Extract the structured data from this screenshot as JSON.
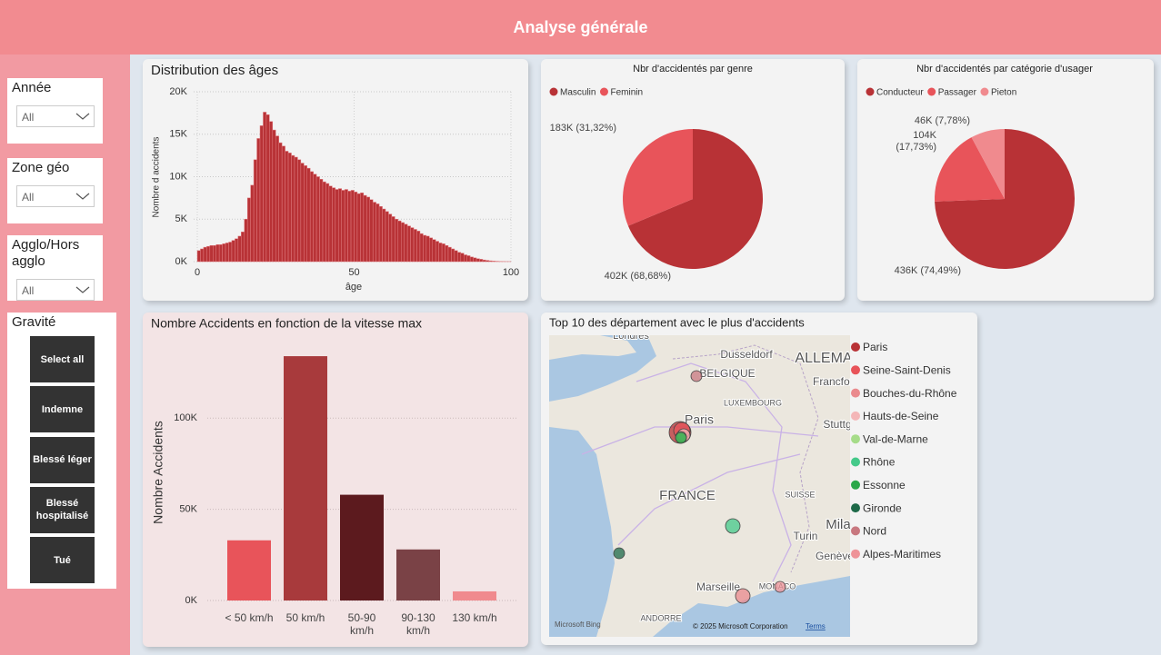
{
  "header": {
    "title": "Analyse générale"
  },
  "slicers": [
    {
      "title": "Année",
      "value": "All"
    },
    {
      "title": "Zone géo",
      "value": "All"
    },
    {
      "title": "Agglo/Hors agglo",
      "value": "All"
    }
  ],
  "gravite": {
    "title": "Gravité",
    "options": [
      "Select all",
      "Indemne",
      "Blessé léger",
      "Blessé hospitalisé",
      "Tué"
    ]
  },
  "chart_data": [
    {
      "type": "histogram",
      "title": "Distribution des âges",
      "xlabel": "âge",
      "ylabel": "Nombre d accidents",
      "color": "#b83236",
      "grid": true,
      "bins": [
        0,
        1,
        2,
        3,
        4,
        5,
        6,
        7,
        8,
        9,
        10,
        11,
        12,
        13,
        14,
        15,
        16,
        17,
        18,
        19,
        20,
        21,
        22,
        23,
        24,
        25,
        26,
        27,
        28,
        29,
        30,
        31,
        32,
        33,
        34,
        35,
        36,
        37,
        38,
        39,
        40,
        41,
        42,
        43,
        44,
        45,
        46,
        47,
        48,
        49,
        50,
        51,
        52,
        53,
        54,
        55,
        56,
        57,
        58,
        59,
        60,
        61,
        62,
        63,
        64,
        65,
        66,
        67,
        68,
        69,
        70,
        71,
        72,
        73,
        74,
        75,
        76,
        77,
        78,
        79,
        80,
        81,
        82,
        83,
        84,
        85,
        86,
        87,
        88,
        89,
        90,
        91,
        92,
        93,
        94,
        95,
        96,
        97,
        98,
        99,
        100
      ],
      "values": [
        1300,
        1500,
        1700,
        1800,
        1900,
        1900,
        2000,
        2000,
        2100,
        2200,
        2300,
        2500,
        2700,
        3000,
        3500,
        5000,
        7500,
        9000,
        12000,
        14500,
        16000,
        17600,
        17300,
        16500,
        15500,
        14800,
        14000,
        13600,
        13000,
        12800,
        12500,
        12300,
        12000,
        11600,
        11300,
        11000,
        10600,
        10300,
        10000,
        9700,
        9400,
        9200,
        8900,
        8700,
        8500,
        8600,
        8400,
        8500,
        8300,
        8400,
        8200,
        8000,
        8100,
        7800,
        7600,
        7300,
        7000,
        6800,
        6500,
        6200,
        5900,
        5600,
        5300,
        5000,
        4800,
        4600,
        4400,
        4200,
        4000,
        3800,
        3600,
        3300,
        3100,
        3000,
        2800,
        2600,
        2400,
        2200,
        2100,
        1900,
        1700,
        1500,
        1300,
        1100,
        1000,
        800,
        700,
        550,
        450,
        350,
        280,
        200,
        150,
        100,
        70,
        50,
        30,
        20,
        10,
        10
      ],
      "xlim": [
        0,
        100
      ],
      "xticks": [
        0,
        50,
        100
      ],
      "ylim": [
        0,
        20000
      ],
      "yticks": [
        {
          "value": 0,
          "label": "0K"
        },
        {
          "value": 5000,
          "label": "5K"
        },
        {
          "value": 10000,
          "label": "10K"
        },
        {
          "value": 15000,
          "label": "15K"
        },
        {
          "value": 20000,
          "label": "20K"
        }
      ]
    },
    {
      "type": "pie",
      "title": "Nbr d'accidentés par genre",
      "categories": [
        "Masculin",
        "Feminin"
      ],
      "values": [
        402000,
        183000
      ],
      "value_labels": [
        "402K (68,68%)",
        "183K (31,32%)"
      ],
      "colors": [
        "#b83236",
        "#e8545a"
      ]
    },
    {
      "type": "pie",
      "title": "Nbr d'accidentés par catégorie d'usager",
      "categories": [
        "Conducteur",
        "Passager",
        "Pieton"
      ],
      "values": [
        436000,
        104000,
        46000
      ],
      "value_labels": [
        "436K (74,49%)",
        "104K (17,73%)",
        "46K (7,78%)"
      ],
      "colors": [
        "#b83236",
        "#e8545a",
        "#f08a8e"
      ]
    },
    {
      "type": "bar",
      "title": "Nombre Accidents en fonction de la vitesse max",
      "ylabel": "Nombre Accidents",
      "grid": true,
      "categories": [
        "< 50 km/h",
        "50 km/h",
        "50-90 km/h",
        "90-130 km/h",
        "130 km/h"
      ],
      "values": [
        33000,
        134000,
        58000,
        28000,
        5000
      ],
      "colors": [
        "#e8545a",
        "#a83a3c",
        "#5c1a1e",
        "#7a4246",
        "#f08a8e"
      ],
      "ylim": [
        0,
        145000
      ],
      "yticks": [
        {
          "value": 0,
          "label": "0K"
        },
        {
          "value": 50000,
          "label": "50K"
        },
        {
          "value": 100000,
          "label": "100K"
        }
      ]
    }
  ],
  "map": {
    "title": "Top 10 des département avec le plus d'accidents",
    "legend": [
      {
        "name": "Paris",
        "color": "#b83236"
      },
      {
        "name": "Seine-Saint-Denis",
        "color": "#e8545a"
      },
      {
        "name": "Bouches-du-Rhône",
        "color": "#ea8a8e"
      },
      {
        "name": "Hauts-de-Seine",
        "color": "#f4b6b8"
      },
      {
        "name": "Val-de-Marne",
        "color": "#a6dc8a"
      },
      {
        "name": "Rhône",
        "color": "#44c98a"
      },
      {
        "name": "Essonne",
        "color": "#2aa84a"
      },
      {
        "name": "Gironde",
        "color": "#1e6a4a"
      },
      {
        "name": "Nord",
        "color": "#c87880"
      },
      {
        "name": "Alpes-Maritimes",
        "color": "#ee9398"
      }
    ],
    "places": [
      "Londres",
      "Dusseldorf",
      "BELGIQUE",
      "ALLEMA",
      "LUXEMBOURG",
      "Francfort",
      "Paris",
      "Stuttg",
      "FRANCE",
      "SUISSE",
      "Turin",
      "Mila",
      "Genève",
      "Marseille",
      "MONACO",
      "ANDORRE"
    ],
    "provider": "Microsoft Bing",
    "copyright": "© 2025 Microsoft Corporation",
    "terms": "Terms"
  }
}
